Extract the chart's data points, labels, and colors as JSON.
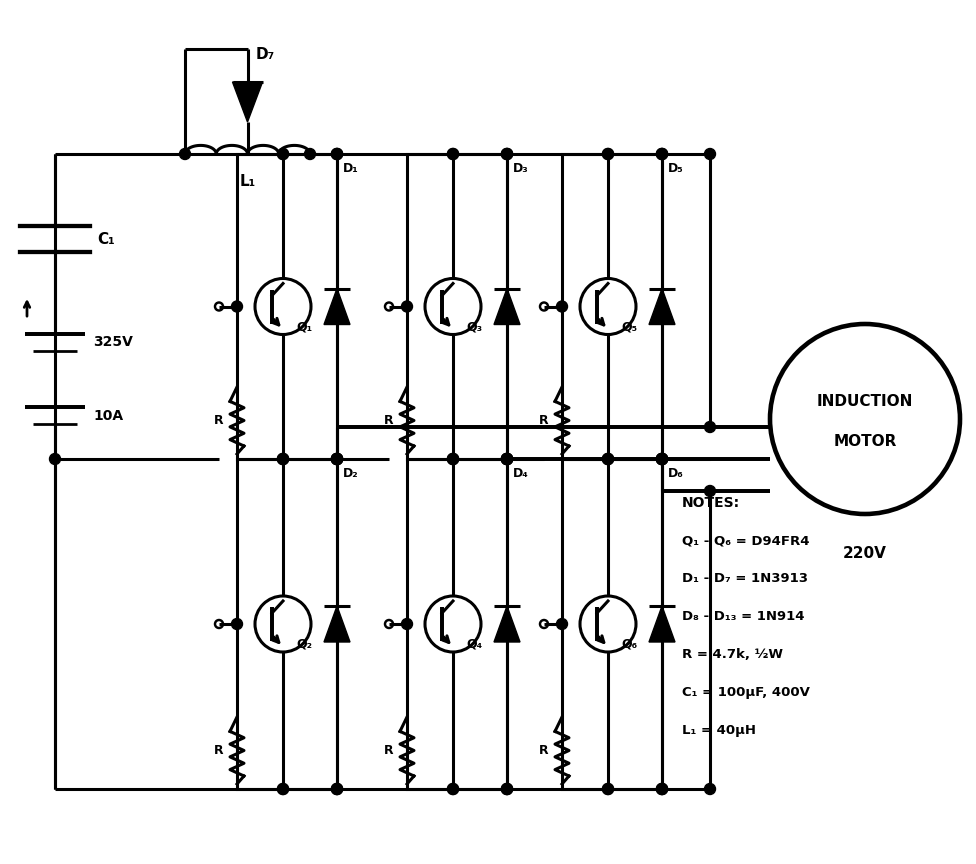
{
  "bg_color": "#ffffff",
  "line_color": "#000000",
  "lw": 2.2,
  "voltage_label": "325V",
  "current_label": "10A",
  "motor_label1": "INDUCTION",
  "motor_label2": "MOTOR",
  "motor_voltage": "220V",
  "C1_label": "C₁",
  "L1_label": "L₁",
  "D7_label": "D₇",
  "notes": [
    "NOTES:",
    "Q₁ - Q₆ = D94FR4",
    "D₁ - D₇ = 1N3913",
    "D₈ - D₁₃ = 1N914",
    "R = 4.7k, ½W",
    "C₁ = 100μF, 400V",
    "L₁ = 40μH"
  ]
}
